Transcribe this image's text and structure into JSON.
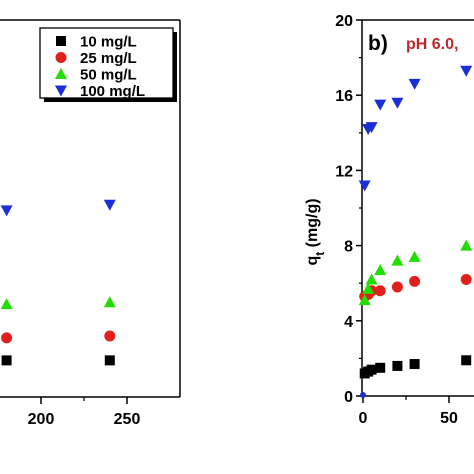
{
  "chart_data": [
    {
      "type": "scatter",
      "panel": "a",
      "x_ticks": [
        "200",
        "250"
      ],
      "x_tick_values": [
        200,
        250
      ],
      "series": [
        {
          "name": "10 mg/L",
          "marker": "square",
          "color": "#000000",
          "x": [
            180,
            240
          ],
          "y": [
            1.9,
            1.9
          ]
        },
        {
          "name": "25 mg/L",
          "marker": "circle",
          "color": "#e0201b",
          "x": [
            180,
            240
          ],
          "y": [
            3.1,
            3.2
          ]
        },
        {
          "name": "50 mg/L",
          "marker": "triangle-up",
          "color": "#22dd00",
          "x": [
            180,
            240
          ],
          "y": [
            4.9,
            5.0
          ]
        },
        {
          "name": "100 mg/L",
          "marker": "triangle-down",
          "color": "#1b2fd6",
          "x": [
            180,
            240
          ],
          "y": [
            9.9,
            10.2
          ]
        }
      ],
      "legend_position": "top-right"
    },
    {
      "type": "scatter",
      "panel": "b",
      "panel_label": "b)",
      "annotation": "pH 6.0,",
      "ylabel_main": "q",
      "ylabel_sub": "t",
      "ylabel_unit": " (mg/g)",
      "ylim": [
        0,
        20
      ],
      "y_ticks": [
        "0",
        "4",
        "8",
        "12",
        "16",
        "20"
      ],
      "y_tick_values": [
        0,
        4,
        8,
        12,
        16,
        20
      ],
      "x_ticks": [
        "0",
        "50"
      ],
      "x_tick_values": [
        0,
        50
      ],
      "series": [
        {
          "name": "10 mg/L",
          "marker": "square",
          "color": "#000000",
          "x": [
            0,
            1,
            3,
            5,
            10,
            20,
            30,
            60
          ],
          "y": [
            0,
            1.2,
            1.3,
            1.4,
            1.5,
            1.6,
            1.7,
            1.9
          ]
        },
        {
          "name": "25 mg/L",
          "marker": "circle",
          "color": "#e0201b",
          "x": [
            1,
            3,
            5,
            10,
            20,
            30,
            60
          ],
          "y": [
            5.3,
            5.4,
            5.6,
            5.6,
            5.8,
            6.1,
            6.2
          ]
        },
        {
          "name": "50 mg/L",
          "marker": "triangle-up",
          "color": "#22dd00",
          "x": [
            1,
            3,
            5,
            10,
            20,
            30,
            60
          ],
          "y": [
            5.1,
            5.7,
            6.2,
            6.7,
            7.2,
            7.4,
            8.0
          ]
        },
        {
          "name": "100 mg/L",
          "marker": "triangle-down",
          "color": "#1b2fd6",
          "x": [
            1,
            3,
            5,
            10,
            20,
            30,
            60
          ],
          "y": [
            11.2,
            14.2,
            14.3,
            15.5,
            15.6,
            16.6,
            17.3
          ]
        }
      ]
    }
  ]
}
